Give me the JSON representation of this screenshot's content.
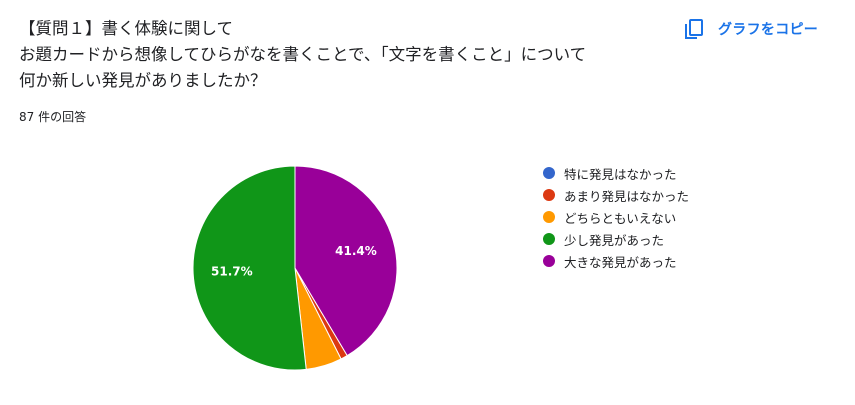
{
  "question": {
    "lines": [
      "【質問１】書く体験に関して",
      "お題カードから想像してひらがなを書くことで、「文字を書くこと」について",
      "何か新しい発見がありましたか？"
    ]
  },
  "response_count": "87 件の回答",
  "copy_button": {
    "label": "グラフをコピー",
    "icon": "copy-icon",
    "color": "#1a73e8"
  },
  "chart_data": {
    "type": "pie",
    "slices": [
      {
        "label": "特に発見はなかった",
        "value": 0,
        "color": "#3366cc"
      },
      {
        "label": "あまり発見はなかった",
        "value": 1.1,
        "color": "#dc3912"
      },
      {
        "label": "どちらともいえない",
        "value": 5.7,
        "color": "#ff9900"
      },
      {
        "label": "少し発見があった",
        "value": 51.7,
        "color": "#109618",
        "data_label": "51.7%"
      },
      {
        "label": "大きな発見があった",
        "value": 41.4,
        "color": "#990099",
        "data_label": "41.4%"
      }
    ],
    "legend_position": "right"
  }
}
